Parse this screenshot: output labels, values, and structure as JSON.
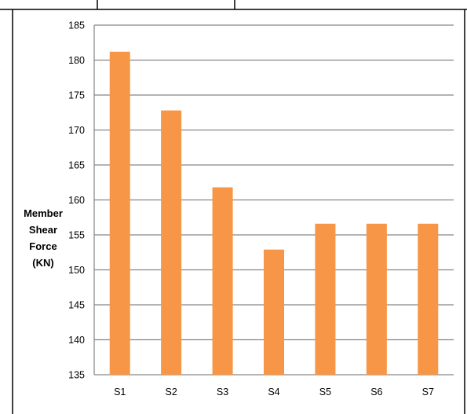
{
  "chart_data": {
    "type": "bar",
    "categories": [
      "S1",
      "S2",
      "S3",
      "S4",
      "S5",
      "S6",
      "S7"
    ],
    "values": [
      181.2,
      172.8,
      161.8,
      152.9,
      156.6,
      156.6,
      156.6
    ],
    "title": "",
    "xlabel": "",
    "ylabel_lines": [
      "Member",
      "Shear",
      "Force",
      "(KN)"
    ],
    "ylim": [
      135,
      185
    ],
    "yticks": [
      135,
      140,
      145,
      150,
      155,
      160,
      165,
      170,
      175,
      180,
      185
    ],
    "grid": true,
    "legend": "none",
    "bar_color": "#F79646",
    "grid_color": "#868686",
    "axis_color": "#868686"
  }
}
